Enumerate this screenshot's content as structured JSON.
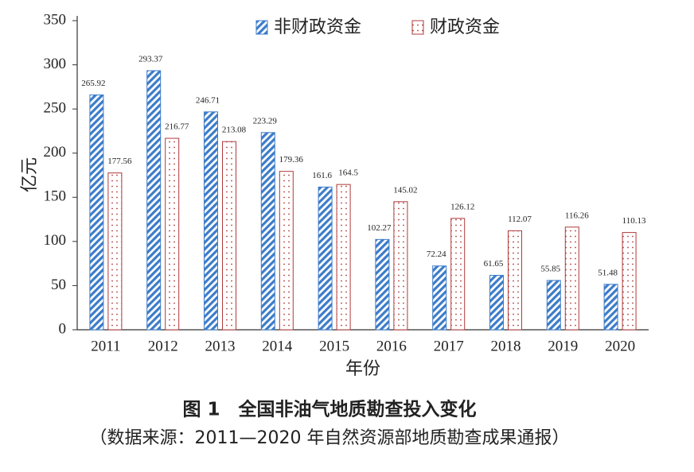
{
  "chart_data": {
    "type": "bar",
    "xlabel": "年份",
    "ylabel": "亿元",
    "categories": [
      "2011",
      "2012",
      "2013",
      "2014",
      "2015",
      "2016",
      "2017",
      "2018",
      "2019",
      "2020"
    ],
    "series": [
      {
        "name": "非财政资金",
        "color": "#3d7cc9",
        "values": [
          265.92,
          293.37,
          246.71,
          223.29,
          161.6,
          102.27,
          72.24,
          61.65,
          55.85,
          51.48
        ]
      },
      {
        "name": "财政资金",
        "color": "#b03a3a",
        "values": [
          177.56,
          216.77,
          213.08,
          179.36,
          164.5,
          145.02,
          126.12,
          112.07,
          116.26,
          110.13
        ]
      }
    ],
    "ylim": [
      0,
      350
    ],
    "yticks": [
      0,
      50,
      100,
      150,
      200,
      250,
      300,
      350
    ],
    "caption": "图 1　全国非油气地质勘查投入变化",
    "source": "（数据来源：2011—2020 年自然资源部地质勘查成果通报）"
  }
}
